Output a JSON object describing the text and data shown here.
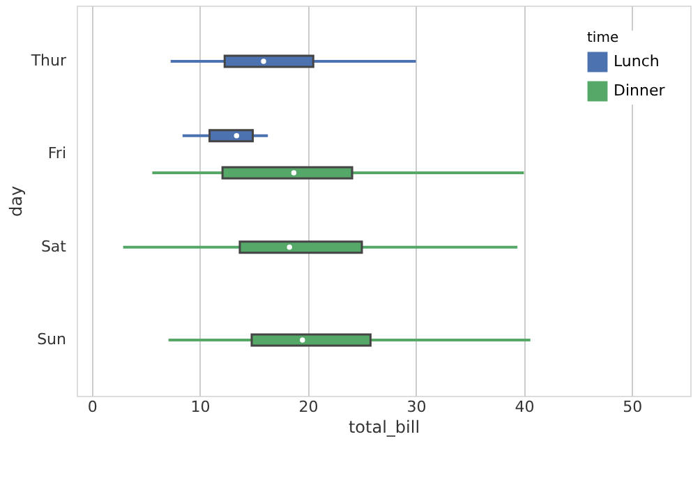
{
  "chart_data": {
    "type": "box",
    "orientation": "horizontal",
    "xlabel": "total_bill",
    "ylabel": "day",
    "legend_title": "time",
    "legend": "top right",
    "grid": "x",
    "categories": [
      "Thur",
      "Fri",
      "Sat",
      "Sun"
    ],
    "xlim": [
      -1.4,
      55.4
    ],
    "xticks": [
      0,
      10,
      20,
      30,
      40,
      50
    ],
    "series": [
      {
        "name": "Lunch",
        "color": "#4c72b0",
        "boxes": [
          {
            "low": 7.3,
            "q1": 12.3,
            "median": 15.9,
            "q3": 20.5,
            "high": 30.0
          },
          {
            "low": 8.4,
            "q1": 10.9,
            "median": 13.4,
            "q3": 14.9,
            "high": 16.3
          },
          null,
          null
        ]
      },
      {
        "name": "Dinner",
        "color": "#55a868",
        "boxes": [
          null,
          {
            "low": 5.6,
            "q1": 12.1,
            "median": 18.7,
            "q3": 24.1,
            "high": 40.0
          },
          {
            "low": 2.9,
            "q1": 13.7,
            "median": 18.3,
            "q3": 25.0,
            "high": 39.4
          },
          {
            "low": 7.1,
            "q1": 14.8,
            "median": 19.5,
            "q3": 25.8,
            "high": 40.6
          }
        ]
      }
    ]
  }
}
